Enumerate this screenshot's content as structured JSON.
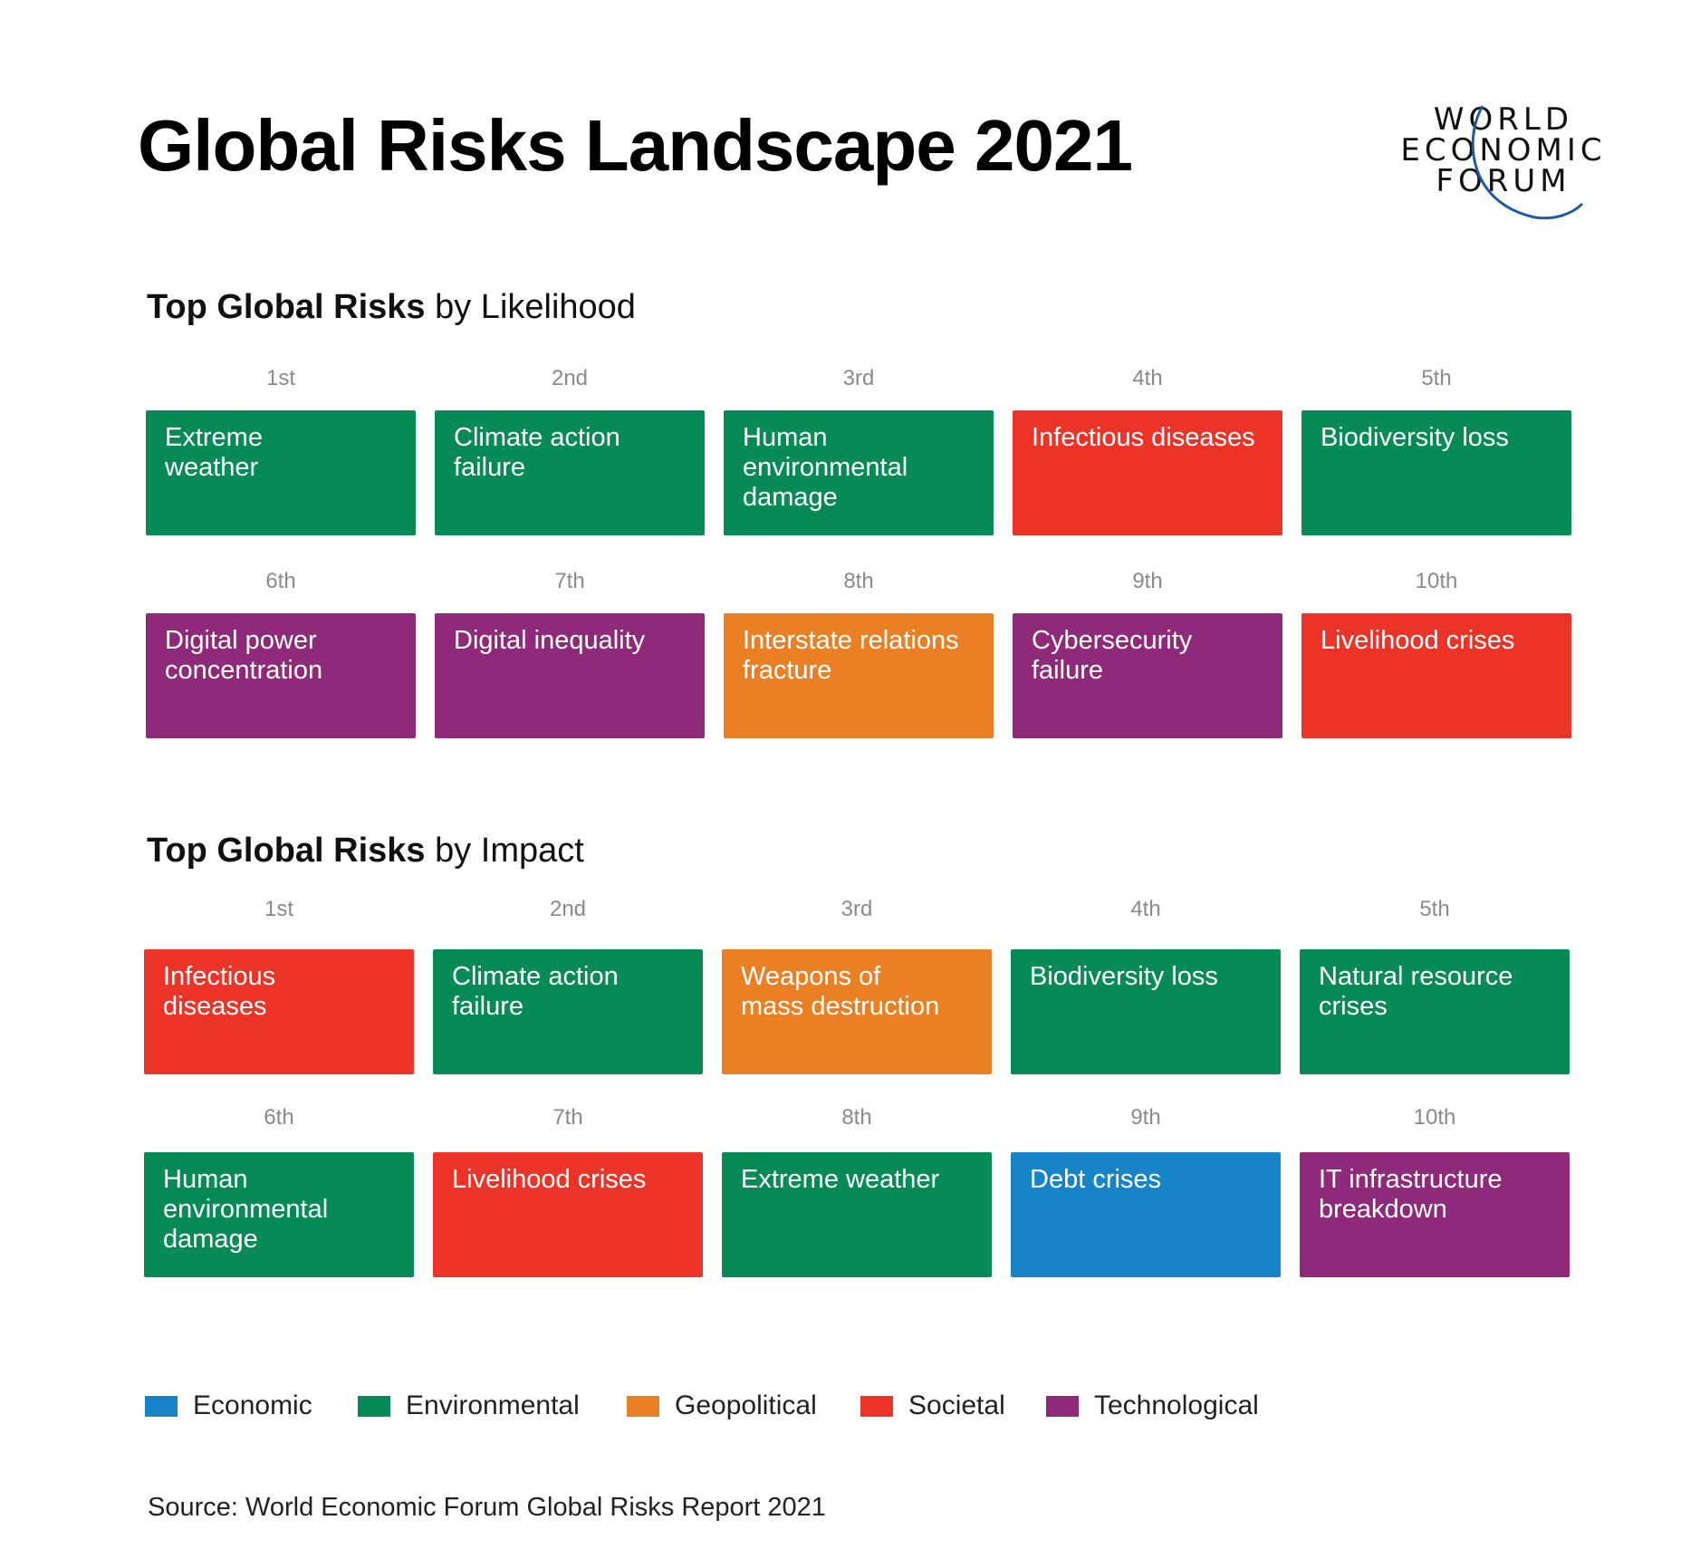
{
  "title": "Global Risks Landscape 2021",
  "logo": {
    "lines": [
      "WORLD",
      "ECONOMIC",
      "FORUM"
    ]
  },
  "colors": {
    "Economic": "#1784c7",
    "Environmental": "#068b57",
    "Geopolitical": "#ea8023",
    "Societal": "#ec3328",
    "Technological": "#8f2a7a"
  },
  "chart_data": {
    "type": "table",
    "sections": [
      {
        "heading_bold": "Top Global Risks",
        "heading_rest": " by Likelihood",
        "items": [
          {
            "rank": "1st",
            "label": "Extreme\nweather",
            "category": "Environmental"
          },
          {
            "rank": "2nd",
            "label": "Climate action\nfailure",
            "category": "Environmental"
          },
          {
            "rank": "3rd",
            "label": "Human\nenvironmental\ndamage",
            "category": "Environmental"
          },
          {
            "rank": "4th",
            "label": "Infectious diseases",
            "category": "Societal"
          },
          {
            "rank": "5th",
            "label": "Biodiversity loss",
            "category": "Environmental"
          },
          {
            "rank": "6th",
            "label": "Digital power\nconcentration",
            "category": "Technological"
          },
          {
            "rank": "7th",
            "label": "Digital inequality",
            "category": "Technological"
          },
          {
            "rank": "8th",
            "label": "Interstate relations\nfracture",
            "category": "Geopolitical"
          },
          {
            "rank": "9th",
            "label": "Cybersecurity failure",
            "category": "Technological"
          },
          {
            "rank": "10th",
            "label": "Livelihood crises",
            "category": "Societal"
          }
        ]
      },
      {
        "heading_bold": "Top Global Risks",
        "heading_rest": " by Impact",
        "items": [
          {
            "rank": "1st",
            "label": "Infectious\ndiseases",
            "category": "Societal"
          },
          {
            "rank": "2nd",
            "label": "Climate action\nfailure",
            "category": "Environmental"
          },
          {
            "rank": "3rd",
            "label": "Weapons of\nmass destruction",
            "category": "Geopolitical"
          },
          {
            "rank": "4th",
            "label": "Biodiversity loss",
            "category": "Environmental"
          },
          {
            "rank": "5th",
            "label": "Natural resource\ncrises",
            "category": "Environmental"
          },
          {
            "rank": "6th",
            "label": "Human\nenvironmental\ndamage",
            "category": "Environmental"
          },
          {
            "rank": "7th",
            "label": "Livelihood crises",
            "category": "Societal"
          },
          {
            "rank": "8th",
            "label": "Extreme weather",
            "category": "Environmental"
          },
          {
            "rank": "9th",
            "label": "Debt crises",
            "category": "Economic"
          },
          {
            "rank": "10th",
            "label": "IT infrastructure\nbreakdown",
            "category": "Technological"
          }
        ]
      }
    ],
    "legend": [
      "Economic",
      "Environmental",
      "Geopolitical",
      "Societal",
      "Technological"
    ]
  },
  "source": "Source: World Economic Forum Global Risks Report 2021"
}
